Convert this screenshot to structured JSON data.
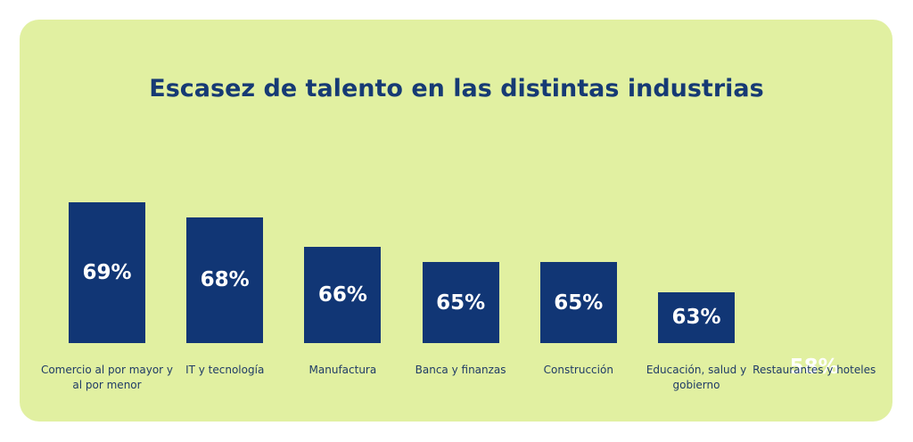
{
  "chart_data": {
    "type": "bar",
    "title": "Escasez de talento en las distintas industrias",
    "categories": [
      "Comercio al por mayor y al por menor",
      "IT y tecnología",
      "Manufactura",
      "Banca y finanzas",
      "Construcción",
      "Educación, salud y gobierno",
      "Restaurantes y hoteles"
    ],
    "values": [
      69,
      68,
      66,
      65,
      65,
      63,
      58
    ],
    "value_labels": [
      "69%",
      "68%",
      "66%",
      "65%",
      "65%",
      "63%",
      "58%"
    ],
    "bar_color": "#113675",
    "background_color": "#e1f0a1",
    "title_color": "#163a74",
    "grid": false,
    "legend": "none"
  }
}
